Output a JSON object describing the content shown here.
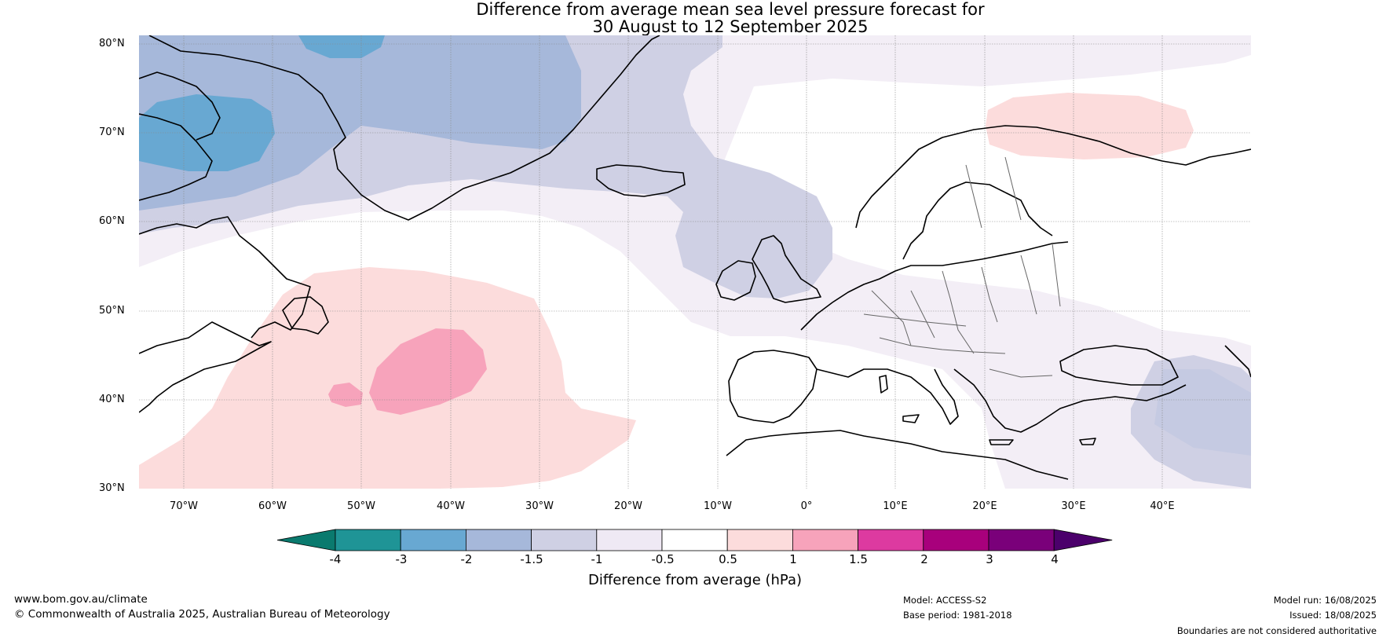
{
  "title": {
    "line1": "Difference from average mean sea level pressure forecast for",
    "line2": "30 August to 12 September 2025"
  },
  "map": {
    "region": "North Atlantic and Europe",
    "projection": "equirectangular",
    "lon_range": [
      -75,
      50
    ],
    "lat_range": [
      30,
      81
    ],
    "lat_ticks": [
      "30°N",
      "40°N",
      "50°N",
      "60°N",
      "70°N",
      "80°N"
    ],
    "lon_ticks": [
      "70°W",
      "60°W",
      "50°W",
      "40°W",
      "30°W",
      "20°W",
      "10°W",
      "0°",
      "10°E",
      "20°E",
      "30°E",
      "40°E"
    ],
    "gridlines": true
  },
  "colorbar": {
    "label": "Difference from average (hPa)",
    "ticks": [
      "-4",
      "-3",
      "-2",
      "-1.5",
      "-1",
      "-0.5",
      "0.5",
      "1",
      "1.5",
      "2",
      "3",
      "4"
    ],
    "colors": [
      "#0a7a6e",
      "#1f9496",
      "#68a8d2",
      "#a6b8da",
      "#cfd0e4",
      "#efe9f4",
      "#ffffff",
      "#fcdcdc",
      "#f7a3bb",
      "#dd3aa0",
      "#a8007c",
      "#7a007a",
      "#4b006b"
    ]
  },
  "footer": {
    "website": "www.bom.gov.au/climate",
    "copyright": "© Commonwealth of Australia 2025, Australian Bureau of Meteorology",
    "model": "Model: ACCESS-S2",
    "base_period": "Base period: 1981-2018",
    "model_run": "Model run: 16/08/2025",
    "issued": "Issued: 18/08/2025",
    "disclaimer": "Boundaries are not considered authoritative"
  }
}
